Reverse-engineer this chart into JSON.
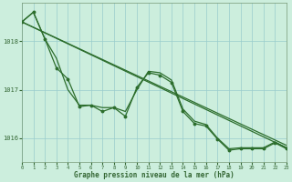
{
  "title": "Graphe pression niveau de la mer (hPa)",
  "bg_color": "#cceedd",
  "grid_color": "#99cccc",
  "line_color": "#2d6e2d",
  "xlim": [
    0,
    23
  ],
  "ylim": [
    1015.5,
    1018.8
  ],
  "yticks": [
    1016,
    1017,
    1018
  ],
  "xticks": [
    0,
    1,
    2,
    3,
    4,
    5,
    6,
    7,
    8,
    9,
    10,
    11,
    12,
    13,
    14,
    15,
    16,
    17,
    18,
    19,
    20,
    21,
    22,
    23
  ],
  "series": {
    "straight": {
      "x": [
        0,
        23
      ],
      "y": [
        1018.4,
        1015.8
      ]
    },
    "straight2": {
      "x": [
        0,
        23
      ],
      "y": [
        1018.4,
        1015.85
      ]
    },
    "wavy_dots": {
      "x": [
        0,
        1,
        2,
        3,
        4,
        5,
        6,
        7,
        8,
        9,
        10,
        11,
        12,
        13,
        14,
        15,
        16,
        17,
        18,
        19,
        20,
        21,
        22,
        23
      ],
      "y": [
        1018.4,
        1018.6,
        1018.05,
        1017.45,
        1017.22,
        1016.65,
        1016.68,
        1016.55,
        1016.63,
        1016.45,
        1017.05,
        1017.35,
        1017.3,
        1017.15,
        1016.55,
        1016.3,
        1016.25,
        1015.98,
        1015.75,
        1015.78,
        1015.78,
        1015.78,
        1015.9,
        1015.78
      ]
    },
    "wavy_nodots": {
      "x": [
        0,
        1,
        2,
        3,
        4,
        5,
        6,
        7,
        8,
        9,
        10,
        11,
        12,
        13,
        14,
        15,
        16,
        17,
        18,
        19,
        20,
        21,
        22,
        23
      ],
      "y": [
        1018.4,
        1018.6,
        1018.05,
        1017.65,
        1017.0,
        1016.68,
        1016.68,
        1016.63,
        1016.63,
        1016.55,
        1017.0,
        1017.38,
        1017.35,
        1017.2,
        1016.6,
        1016.35,
        1016.28,
        1016.0,
        1015.78,
        1015.8,
        1015.8,
        1015.8,
        1015.92,
        1015.8
      ]
    }
  }
}
